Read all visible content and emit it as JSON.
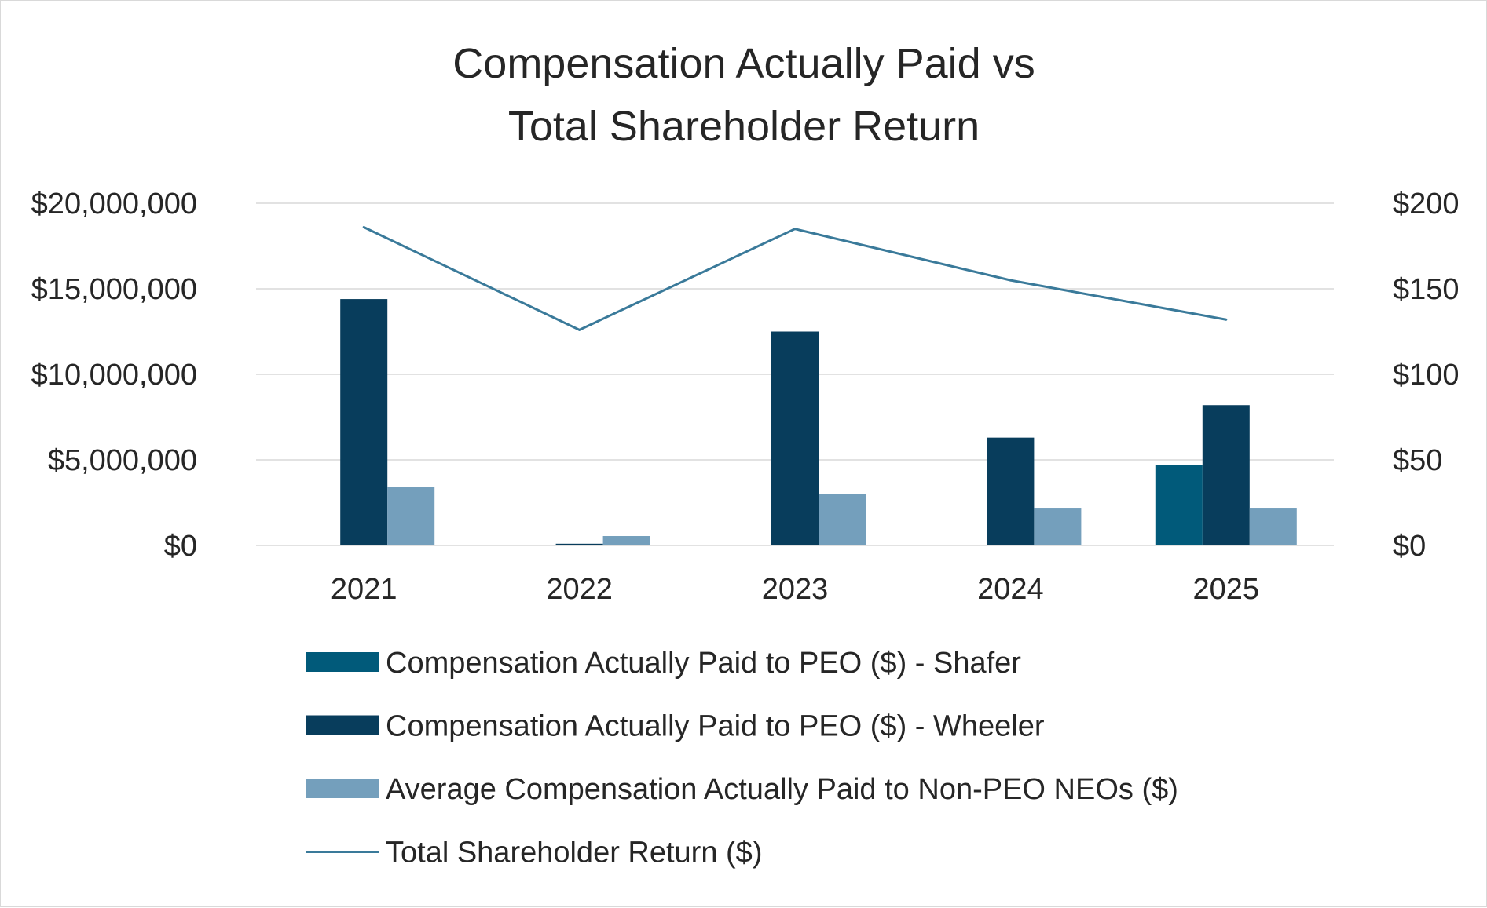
{
  "chart_data": {
    "type": "bar",
    "title_lines": [
      "Compensation Actually Paid vs",
      "Total Shareholder Return"
    ],
    "categories": [
      "2021",
      "2022",
      "2023",
      "2024",
      "2025"
    ],
    "series": [
      {
        "name": "Compensation Actually Paid to PEO ($) - Shafer",
        "axis": "left",
        "kind": "bar",
        "color": "#015a7a",
        "values": [
          0,
          0,
          0,
          0,
          4700000
        ]
      },
      {
        "name": "Compensation Actually Paid to PEO ($) - Wheeler",
        "axis": "left",
        "kind": "bar",
        "color": "#083d5c",
        "values": [
          14400000,
          100000,
          12500000,
          6300000,
          8200000
        ]
      },
      {
        "name": "Average Compensation Actually Paid to Non-PEO NEOs ($)",
        "axis": "left",
        "kind": "bar",
        "color": "#749fbc",
        "values": [
          3400000,
          550000,
          3000000,
          2200000,
          2200000
        ]
      },
      {
        "name": "Total Shareholder Return ($)",
        "axis": "right",
        "kind": "line",
        "color": "#3a7a9a",
        "values": [
          186,
          126,
          185,
          155,
          132
        ]
      }
    ],
    "y_left": {
      "min": 0,
      "max": 20000000,
      "ticks": [
        0,
        5000000,
        10000000,
        15000000,
        20000000
      ],
      "tick_labels": [
        "$0",
        "$5,000,000",
        "$10,000,000",
        "$15,000,000",
        "$20,000,000"
      ]
    },
    "y_right": {
      "min": 0,
      "max": 200,
      "ticks": [
        0,
        50,
        100,
        150,
        200
      ],
      "tick_labels": [
        "$0",
        "$50",
        "$100",
        "$150",
        "$200"
      ]
    },
    "gridlines": true,
    "legend_position": "bottom"
  }
}
